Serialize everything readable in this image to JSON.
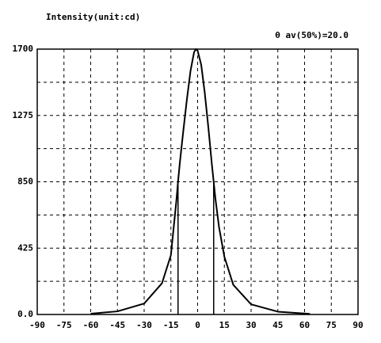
{
  "chart_data": {
    "type": "line",
    "title": "Intensity(unit:cd)",
    "annotation": "θ av(50%)=20.0",
    "x": [
      -60,
      -45,
      -30,
      -20,
      -15,
      -12,
      -11,
      -10,
      -8,
      -6,
      -4,
      -2,
      -1,
      0,
      2,
      4,
      6,
      8,
      9,
      10,
      12,
      15,
      20,
      30,
      45,
      63
    ],
    "series": [
      {
        "name": "Intensity",
        "color": "#000000",
        "values": [
          5,
          20,
          70,
          200,
          380,
          720,
          850,
          970,
          1180,
          1380,
          1560,
          1680,
          1700,
          1690,
          1600,
          1420,
          1200,
          960,
          850,
          740,
          560,
          370,
          190,
          65,
          18,
          4
        ]
      }
    ],
    "half_max_x": [
      -11,
      9
    ],
    "half_max_value": 850,
    "xlim": [
      -90,
      90
    ],
    "xticks": [
      -90,
      -75,
      -60,
      -45,
      -30,
      -15,
      0,
      15,
      30,
      45,
      60,
      75,
      90
    ],
    "ylim": [
      0,
      1700
    ],
    "yticks": [
      {
        "value": 0,
        "label": "0.0"
      },
      425,
      850,
      1275,
      1700
    ],
    "y_minor_grid": [
      212.5,
      637.5,
      1062.5,
      1487.5
    ],
    "grid": true
  }
}
